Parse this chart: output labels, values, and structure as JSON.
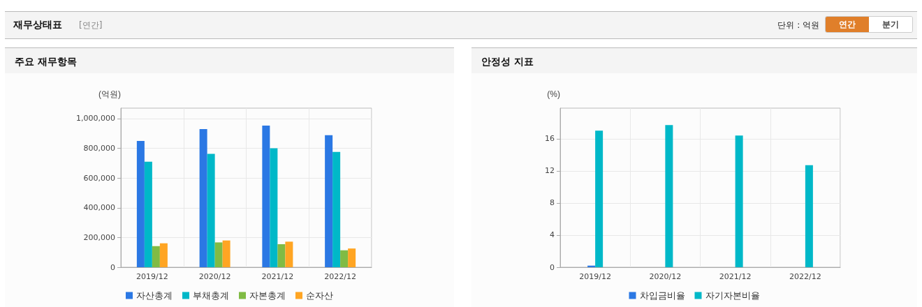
{
  "chart_data": [
    {
      "type": "bar",
      "title": "주요 재무항목",
      "ylabel": "(억원)",
      "annotations": [
        "재무상태표",
        "[연간]",
        "단위 : 억원",
        "연간",
        "분기"
      ],
      "categories": [
        "2019/12",
        "2020/12",
        "2021/12",
        "2022/12"
      ],
      "series": [
        {
          "name": "자산총계",
          "color": "#2b78e4",
          "values": [
            850000,
            929000,
            953000,
            888000
          ]
        },
        {
          "name": "부채총계",
          "color": "#00b8c8",
          "values": [
            710000,
            763000,
            800000,
            776000
          ]
        },
        {
          "name": "자본총계",
          "color": "#80bb44",
          "values": [
            142000,
            167000,
            155000,
            114000
          ]
        },
        {
          "name": "순자산",
          "color": "#ffa523",
          "values": [
            161000,
            180000,
            172000,
            126000
          ]
        }
      ],
      "ylim": [
        0,
        1070000
      ],
      "yticks": [
        0,
        {
          "value": 200000,
          "label": "200,000"
        },
        {
          "value": 400000,
          "label": "400,000"
        },
        {
          "value": 600000,
          "label": "600,000"
        },
        {
          "value": 800000,
          "label": "800,000"
        },
        {
          "value": 1000000,
          "label": "1,000,000"
        }
      ],
      "grid": true,
      "legend": "bottom"
    },
    {
      "type": "bar",
      "title": "안정성 지표",
      "ylabel": "(%)",
      "categories": [
        "2019/12",
        "2020/12",
        "2021/12",
        "2022/12"
      ],
      "series": [
        {
          "name": "차입금비율",
          "color": "#2b78e4",
          "values": [
            0.2,
            0,
            0,
            0
          ]
        },
        {
          "name": "자기자본비율",
          "color": "#00b8c8",
          "values": [
            17.0,
            17.7,
            16.4,
            12.7
          ]
        }
      ],
      "ylim": [
        0,
        19.8
      ],
      "yticks": [
        0,
        4,
        8,
        12,
        16
      ],
      "grid": true,
      "legend": "bottom"
    }
  ]
}
